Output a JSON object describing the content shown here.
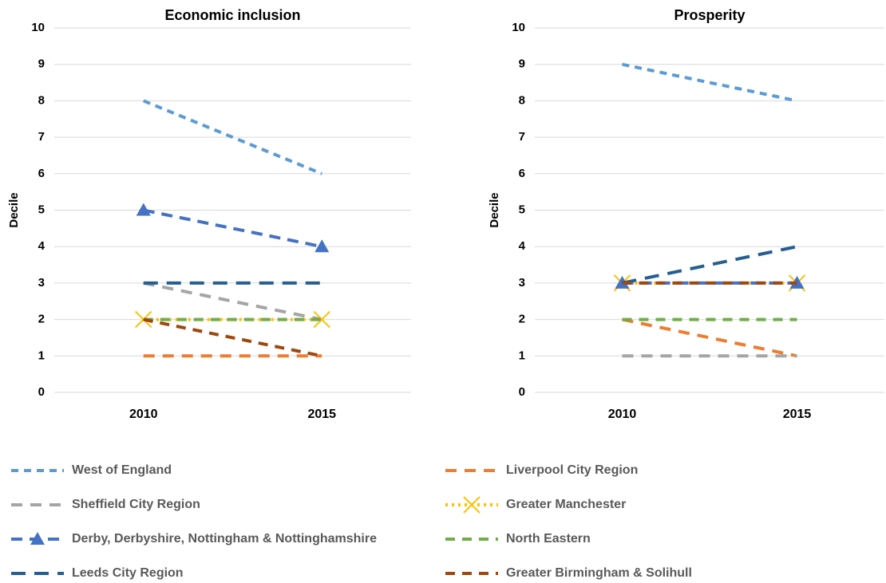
{
  "legend": {
    "series": [
      {
        "name": "West of England",
        "color": "#5b9bd5",
        "dash": "9 7",
        "marker": "none"
      },
      {
        "name": "Liverpool City Region",
        "color": "#ed7d31",
        "dash": "14 10",
        "marker": "none"
      },
      {
        "name": "Sheffield City Region",
        "color": "#a5a5a5",
        "dash": "14 10",
        "marker": "none"
      },
      {
        "name": "Greater Manchester",
        "color": "#ffc000",
        "dash": "3 5",
        "marker": "x"
      },
      {
        "name": "Derby, Derbyshire, Nottingham & Nottinghamshire",
        "color": "#4472c4",
        "dash": "14 9",
        "marker": "triangle"
      },
      {
        "name": "North Eastern",
        "color": "#70ad47",
        "dash": "12 9",
        "marker": "none"
      },
      {
        "name": "Leeds City Region",
        "color": "#255e91",
        "dash": "18 11",
        "marker": "none"
      },
      {
        "name": "Greater Birmingham & Solihull",
        "color": "#9e480e",
        "dash": "12 9",
        "marker": "none"
      }
    ]
  },
  "chart_data": [
    {
      "type": "line",
      "title": "Economic inclusion",
      "y_label": "Decile",
      "categories": [
        "2010",
        "2015"
      ],
      "ylim": [
        0,
        10
      ],
      "yticks": [
        0,
        1,
        2,
        3,
        4,
        5,
        6,
        7,
        8,
        9,
        10
      ],
      "grid": true,
      "series": [
        {
          "values": [
            8,
            6
          ]
        },
        {
          "values": [
            1,
            1
          ]
        },
        {
          "values": [
            3,
            2
          ]
        },
        {
          "values": [
            2,
            2
          ]
        },
        {
          "values": [
            5,
            4
          ]
        },
        {
          "values": [
            2,
            2
          ]
        },
        {
          "values": [
            3,
            3
          ]
        },
        {
          "values": [
            2,
            1
          ]
        }
      ]
    },
    {
      "type": "line",
      "title": "Prosperity",
      "y_label": "Decile",
      "categories": [
        "2010",
        "2015"
      ],
      "ylim": [
        0,
        10
      ],
      "yticks": [
        0,
        1,
        2,
        3,
        4,
        5,
        6,
        7,
        8,
        9,
        10
      ],
      "grid": true,
      "series": [
        {
          "values": [
            9,
            8
          ]
        },
        {
          "values": [
            2,
            1
          ]
        },
        {
          "values": [
            1,
            1
          ]
        },
        {
          "values": [
            3,
            3
          ]
        },
        {
          "values": [
            3,
            3
          ]
        },
        {
          "values": [
            2,
            2
          ]
        },
        {
          "values": [
            3,
            4
          ]
        },
        {
          "values": [
            3,
            3
          ]
        }
      ]
    }
  ]
}
